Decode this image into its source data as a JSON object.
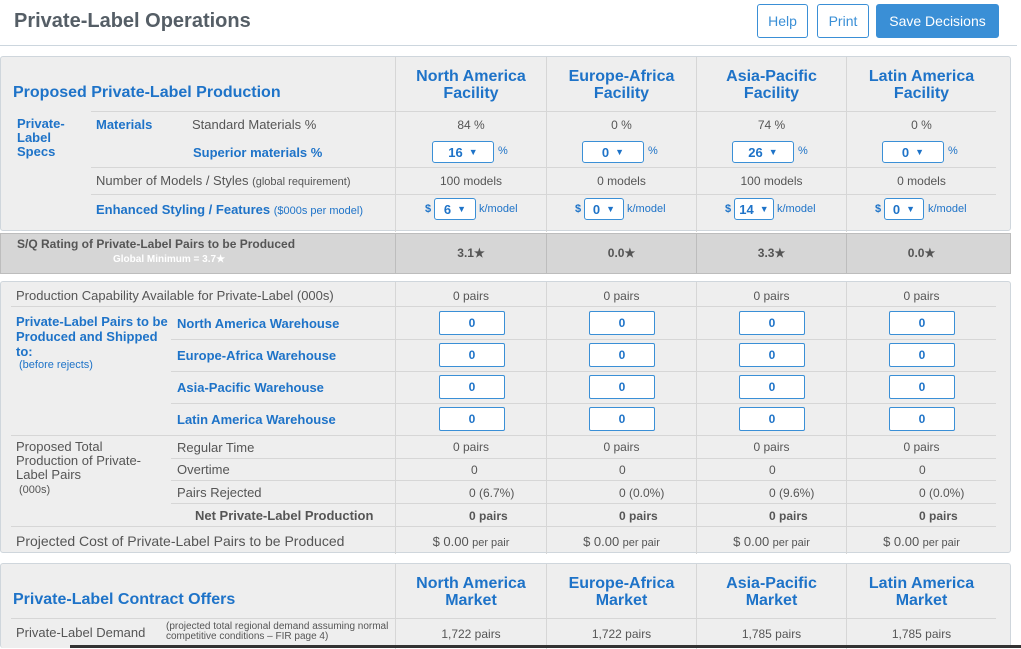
{
  "header": {
    "title": "Private-Label Operations",
    "help_label": "Help",
    "print_label": "Print",
    "save_label": "Save Decisions"
  },
  "production": {
    "title": "Proposed Private-Label Production",
    "facilities": [
      "North America\nFacility",
      "Europe-Africa\nFacility",
      "Asia-Pacific\nFacility",
      "Latin America\nFacility"
    ],
    "specs_label": "Private-\nLabel\nSpecs",
    "materials_label": "Materials",
    "standard_label": "Standard Materials %",
    "standard_values": [
      "84 %",
      "0 %",
      "74 %",
      "0 %"
    ],
    "superior_label": "Superior materials %",
    "superior_values": [
      "16",
      "0",
      "26",
      "0"
    ],
    "percent_unit": "%",
    "models_label": "Number of Models / Styles",
    "models_note": "(global requirement)",
    "models_values": [
      "100  models",
      "0  models",
      "100  models",
      "0  models"
    ],
    "styling_label": "Enhanced Styling / Features",
    "styling_note": "($000s per model)",
    "styling_values": [
      "6",
      "0",
      "14",
      "0"
    ],
    "dollar": "$",
    "styling_unit": "k/model"
  },
  "sq": {
    "label": "S/Q Rating of Private-Label Pairs to be Produced",
    "minimum": "Global Minimum = 3.7★",
    "values": [
      "3.1★",
      "0.0★",
      "3.3★",
      "0.0★"
    ]
  },
  "capability": {
    "label": "Production Capability Available for Private-Label (000s)",
    "values": [
      "0 pairs",
      "0 pairs",
      "0 pairs",
      "0 pairs"
    ]
  },
  "shipping": {
    "label": "Private-Label Pairs to be Produced and Shipped to:",
    "note": "(before rejects)",
    "warehouses": [
      "North America Warehouse",
      "Europe-Africa Warehouse",
      "Asia-Pacific Warehouse",
      "Latin America Warehouse"
    ],
    "values": [
      [
        "0",
        "0",
        "0",
        "0"
      ],
      [
        "0",
        "0",
        "0",
        "0"
      ],
      [
        "0",
        "0",
        "0",
        "0"
      ],
      [
        "0",
        "0",
        "0",
        "0"
      ]
    ]
  },
  "totals": {
    "label": "Proposed Total Production of Private-Label Pairs",
    "unit_note": "(000s)",
    "regular_label": "Regular Time",
    "regular_values": [
      "0 pairs",
      "0 pairs",
      "0 pairs",
      "0 pairs"
    ],
    "overtime_label": "Overtime",
    "overtime_values": [
      "0",
      "0",
      "0",
      "0"
    ],
    "rejected_label": "Pairs Rejected",
    "rejected_values": [
      "0 (6.7%)",
      "0 (0.0%)",
      "0 (9.6%)",
      "0 (0.0%)"
    ],
    "net_label": "Net Private-Label Production",
    "net_values": [
      "0 pairs",
      "0 pairs",
      "0 pairs",
      "0 pairs"
    ]
  },
  "cost": {
    "label": "Projected Cost of Private-Label Pairs to be Produced",
    "values": [
      "$ 0.00",
      "$ 0.00",
      "$ 0.00",
      "$ 0.00"
    ],
    "unit": "per pair"
  },
  "offers": {
    "title": "Private-Label Contract Offers",
    "markets": [
      "North America\nMarket",
      "Europe-Africa\nMarket",
      "Asia-Pacific\nMarket",
      "Latin America\nMarket"
    ],
    "demand_label": "Private-Label Demand",
    "demand_note": "(projected total regional demand assuming normal competitive conditions – FIR page 4)",
    "demand_values": [
      "1,722 pairs",
      "1,722 pairs",
      "1,785 pairs",
      "1,785 pairs"
    ]
  }
}
